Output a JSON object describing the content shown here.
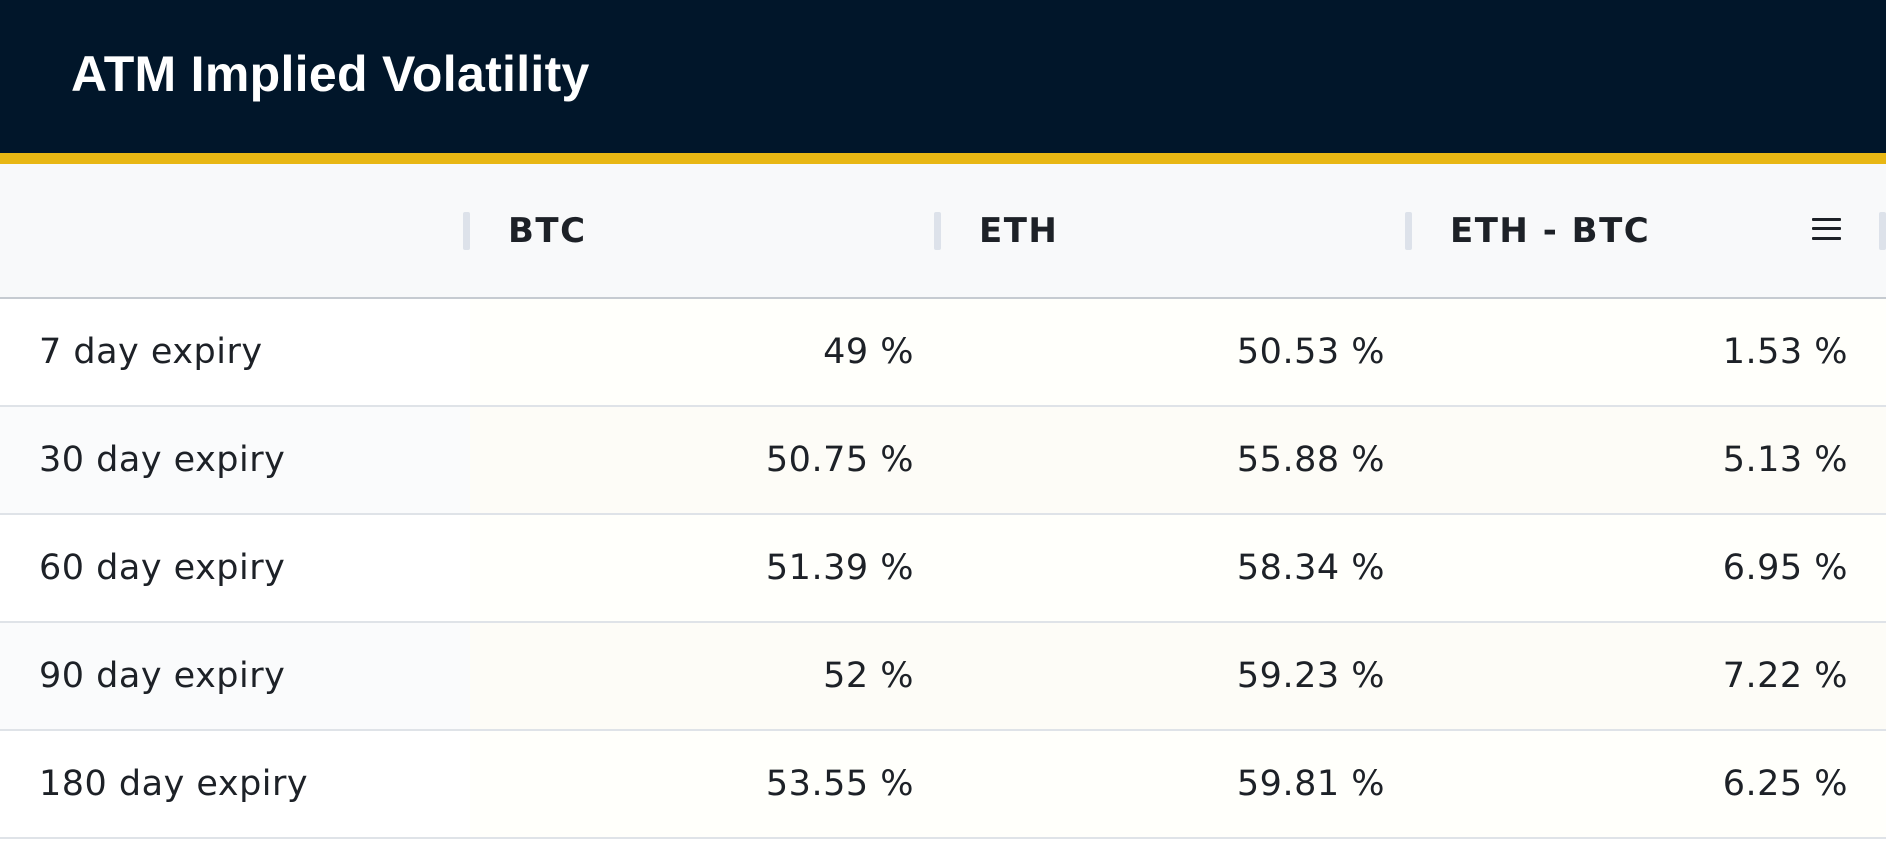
{
  "header": {
    "title": "ATM Implied Volatility"
  },
  "table": {
    "columns": [
      "",
      "BTC",
      "ETH",
      "ETH - BTC"
    ],
    "rows": [
      {
        "label": "7 day expiry",
        "btc": "49 %",
        "eth": "50.53 %",
        "diff": "1.53 %"
      },
      {
        "label": "30 day expiry",
        "btc": "50.75 %",
        "eth": "55.88 %",
        "diff": "5.13 %"
      },
      {
        "label": "60 day expiry",
        "btc": "51.39 %",
        "eth": "58.34 %",
        "diff": "6.95 %"
      },
      {
        "label": "90 day expiry",
        "btc": "52 %",
        "eth": "59.23 %",
        "diff": "7.22 %"
      },
      {
        "label": "180 day expiry",
        "btc": "53.55 %",
        "eth": "59.81 %",
        "diff": "6.25 %"
      }
    ]
  },
  "icons": {
    "column_menu": "menu-icon"
  },
  "colors": {
    "header_bg": "#01162a",
    "accent": "#e8b714"
  }
}
